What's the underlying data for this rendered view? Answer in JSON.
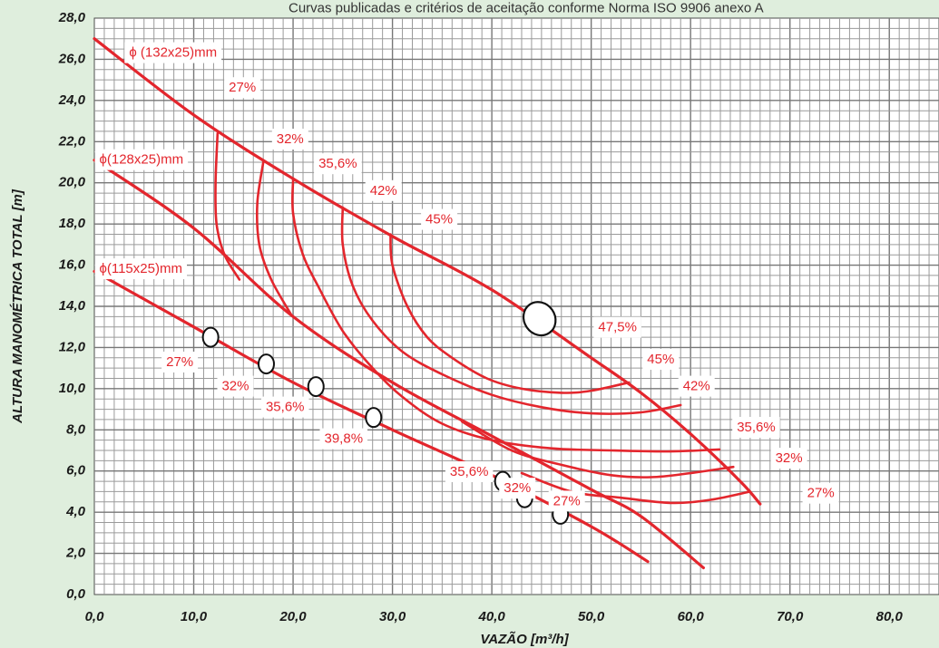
{
  "subtitle": "Curvas publicadas e critérios de aceitação conforme Norma ISO 9906 anexo A",
  "chart_data": {
    "type": "line",
    "xlabel": "VAZÃO [m³/h]",
    "ylabel": "ALTURA MANOMÉTRICA TOTAL [m]",
    "xlim": [
      0,
      85
    ],
    "ylim": [
      0,
      28
    ],
    "x_ticks": [
      "0,0",
      "10,0",
      "20,0",
      "30,0",
      "40,0",
      "50,0",
      "60,0",
      "70,0",
      "80,0"
    ],
    "y_ticks": [
      "0,0",
      "2,0",
      "4,0",
      "6,0",
      "8,0",
      "10,0",
      "12,0",
      "14,0",
      "16,0",
      "18,0",
      "20,0",
      "22,0",
      "24,0",
      "26,0",
      "28,0"
    ],
    "grid": true,
    "line_color": "#e3262d",
    "impeller_curves": [
      {
        "label": "ϕ (132x25)mm",
        "label_at": [
          3.5,
          26.3
        ],
        "points": [
          [
            0,
            27
          ],
          [
            10,
            23.3
          ],
          [
            20,
            20.2
          ],
          [
            30,
            17.4
          ],
          [
            40,
            14.8
          ],
          [
            50,
            11.5
          ],
          [
            55,
            9.8
          ],
          [
            60,
            7.8
          ],
          [
            65,
            5.5
          ],
          [
            67,
            4.4
          ]
        ]
      },
      {
        "label": "ϕ(128x25)mm",
        "label_at": [
          0.5,
          21.1
        ],
        "points": [
          [
            0,
            21.1
          ],
          [
            10,
            17.8
          ],
          [
            20,
            13.5
          ],
          [
            30,
            10.3
          ],
          [
            40,
            7.7
          ],
          [
            50,
            5.1
          ],
          [
            55,
            3.8
          ],
          [
            61.3,
            1.3
          ]
        ]
      },
      {
        "label": "ϕ(115x25)mm",
        "label_at": [
          0.5,
          15.8
        ],
        "points": [
          [
            0,
            15.7
          ],
          [
            10,
            13
          ],
          [
            20,
            10.3
          ],
          [
            30,
            8
          ],
          [
            40,
            5.8
          ],
          [
            50,
            3.3
          ],
          [
            55.7,
            1.6
          ]
        ]
      }
    ],
    "efficiency_curves": [
      {
        "label": "27%",
        "points": [
          [
            12.4,
            22.4
          ],
          [
            12.2,
            20
          ],
          [
            12.3,
            18
          ],
          [
            13.1,
            16.5
          ],
          [
            14.6,
            15.3
          ]
        ]
      },
      {
        "label": "32%",
        "points": [
          [
            17,
            21
          ],
          [
            16.4,
            19
          ],
          [
            16.6,
            17
          ],
          [
            17.8,
            15.3
          ],
          [
            19.8,
            13.6
          ]
        ]
      },
      {
        "label": "35,6%",
        "points": [
          [
            20,
            20.2
          ],
          [
            20,
            18.5
          ],
          [
            21,
            16.5
          ],
          [
            22.5,
            15
          ],
          [
            25,
            12.8
          ],
          [
            28,
            11
          ],
          [
            31,
            9.6
          ],
          [
            35,
            8.3
          ],
          [
            40,
            7.5
          ],
          [
            46,
            7.1
          ],
          [
            52,
            7
          ],
          [
            58,
            6.95
          ],
          [
            62.9,
            7.05
          ]
        ]
      },
      {
        "label": "42%",
        "points": [
          [
            25,
            18.8
          ],
          [
            25,
            17
          ],
          [
            26,
            15
          ],
          [
            28,
            13.3
          ],
          [
            31,
            11.8
          ],
          [
            35,
            10.7
          ],
          [
            40,
            9.7
          ],
          [
            45,
            9.1
          ],
          [
            50,
            8.8
          ],
          [
            55,
            8.85
          ],
          [
            59,
            9.2
          ]
        ]
      },
      {
        "label": "45%",
        "points": [
          [
            29.8,
            17.5
          ],
          [
            30,
            16
          ],
          [
            31.5,
            14
          ],
          [
            33.5,
            12.5
          ],
          [
            36,
            11.5
          ],
          [
            39.5,
            10.5
          ],
          [
            43,
            10
          ],
          [
            47,
            9.8
          ],
          [
            50,
            9.9
          ],
          [
            53.8,
            10.3
          ]
        ]
      },
      {
        "label": "32%",
        "points": [
          [
            37,
            8.4
          ],
          [
            42,
            7
          ],
          [
            47,
            6.3
          ],
          [
            52,
            5.8
          ],
          [
            56,
            5.7
          ],
          [
            60,
            5.9
          ],
          [
            64.3,
            6.2
          ]
        ]
      },
      {
        "label": "27%",
        "points": [
          [
            43,
            5.9
          ],
          [
            48,
            5
          ],
          [
            53,
            4.7
          ],
          [
            58,
            4.45
          ],
          [
            62,
            4.6
          ],
          [
            66,
            5
          ]
        ]
      }
    ],
    "bep_marker": {
      "label": "47,5%",
      "at": [
        44.8,
        13.4
      ]
    },
    "test_points": [
      {
        "x": 11.7,
        "y": 12.5,
        "label": "27%"
      },
      {
        "x": 17.3,
        "y": 11.2,
        "label": "32%"
      },
      {
        "x": 22.3,
        "y": 10.1,
        "label": "35,6%"
      },
      {
        "x": 28.1,
        "y": 8.6,
        "label": "39,8%"
      },
      {
        "x": 41.1,
        "y": 5.5,
        "label": "35,6%"
      },
      {
        "x": 43.3,
        "y": 4.7,
        "label": "32%"
      },
      {
        "x": 46.9,
        "y": 3.9,
        "label": "27%"
      }
    ],
    "efficiency_labels": [
      {
        "text": "27%",
        "at": [
          14.9,
          24.6
        ]
      },
      {
        "text": "32%",
        "at": [
          19.7,
          22.1
        ]
      },
      {
        "text": "35,6%",
        "at": [
          24.5,
          20.9
        ]
      },
      {
        "text": "42%",
        "at": [
          29.1,
          19.6
        ]
      },
      {
        "text": "45%",
        "at": [
          34.7,
          18.2
        ]
      },
      {
        "text": "45%",
        "at": [
          57,
          11.4
        ]
      },
      {
        "text": "42%",
        "at": [
          60.6,
          10.1
        ]
      },
      {
        "text": "35,6%",
        "at": [
          66.6,
          8.1
        ]
      },
      {
        "text": "32%",
        "at": [
          69.9,
          6.6
        ]
      },
      {
        "text": "27%",
        "at": [
          73.1,
          4.9
        ]
      }
    ]
  }
}
